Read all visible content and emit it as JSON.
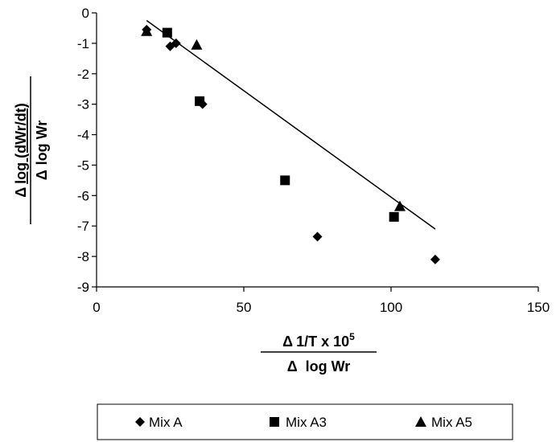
{
  "chart_data": {
    "type": "scatter",
    "title": "",
    "xlabel": {
      "numerator_delta": "Δ",
      "numerator_text": "1/T x 10",
      "numerator_sup": "5",
      "denominator_delta": "Δ",
      "denominator_text": "log Wr"
    },
    "ylabel": {
      "numerator_delta": "Δ",
      "numerator_text": "log (dWr/dt)",
      "denominator_delta": "Δ",
      "denominator_text": "log Wr"
    },
    "xlim": [
      0,
      150
    ],
    "ylim": [
      -9,
      0
    ],
    "xticks": [
      0,
      50,
      100,
      150
    ],
    "yticks": [
      0,
      -1,
      -2,
      -3,
      -4,
      -5,
      -6,
      -7,
      -8,
      -9
    ],
    "grid": false,
    "legend_position": "bottom",
    "series": [
      {
        "name": "Mix A",
        "marker": "diamond",
        "points": [
          [
            17,
            -0.55
          ],
          [
            25,
            -1.1
          ],
          [
            27,
            -1.0
          ],
          [
            36,
            -3.0
          ],
          [
            75,
            -7.35
          ],
          [
            115,
            -8.1
          ]
        ]
      },
      {
        "name": "Mix A3",
        "marker": "square",
        "points": [
          [
            24,
            -0.65
          ],
          [
            35,
            -2.9
          ],
          [
            64,
            -5.5
          ],
          [
            101,
            -6.7
          ]
        ]
      },
      {
        "name": "Mix A5",
        "marker": "triangle",
        "points": [
          [
            17,
            -0.6
          ],
          [
            34,
            -1.05
          ],
          [
            103,
            -6.35
          ]
        ]
      }
    ],
    "trendline": {
      "x": [
        17,
        115
      ],
      "y": [
        -0.25,
        -7.1
      ]
    },
    "colors": {
      "marker": "#000000",
      "line": "#000000",
      "axis": "#000000"
    }
  }
}
